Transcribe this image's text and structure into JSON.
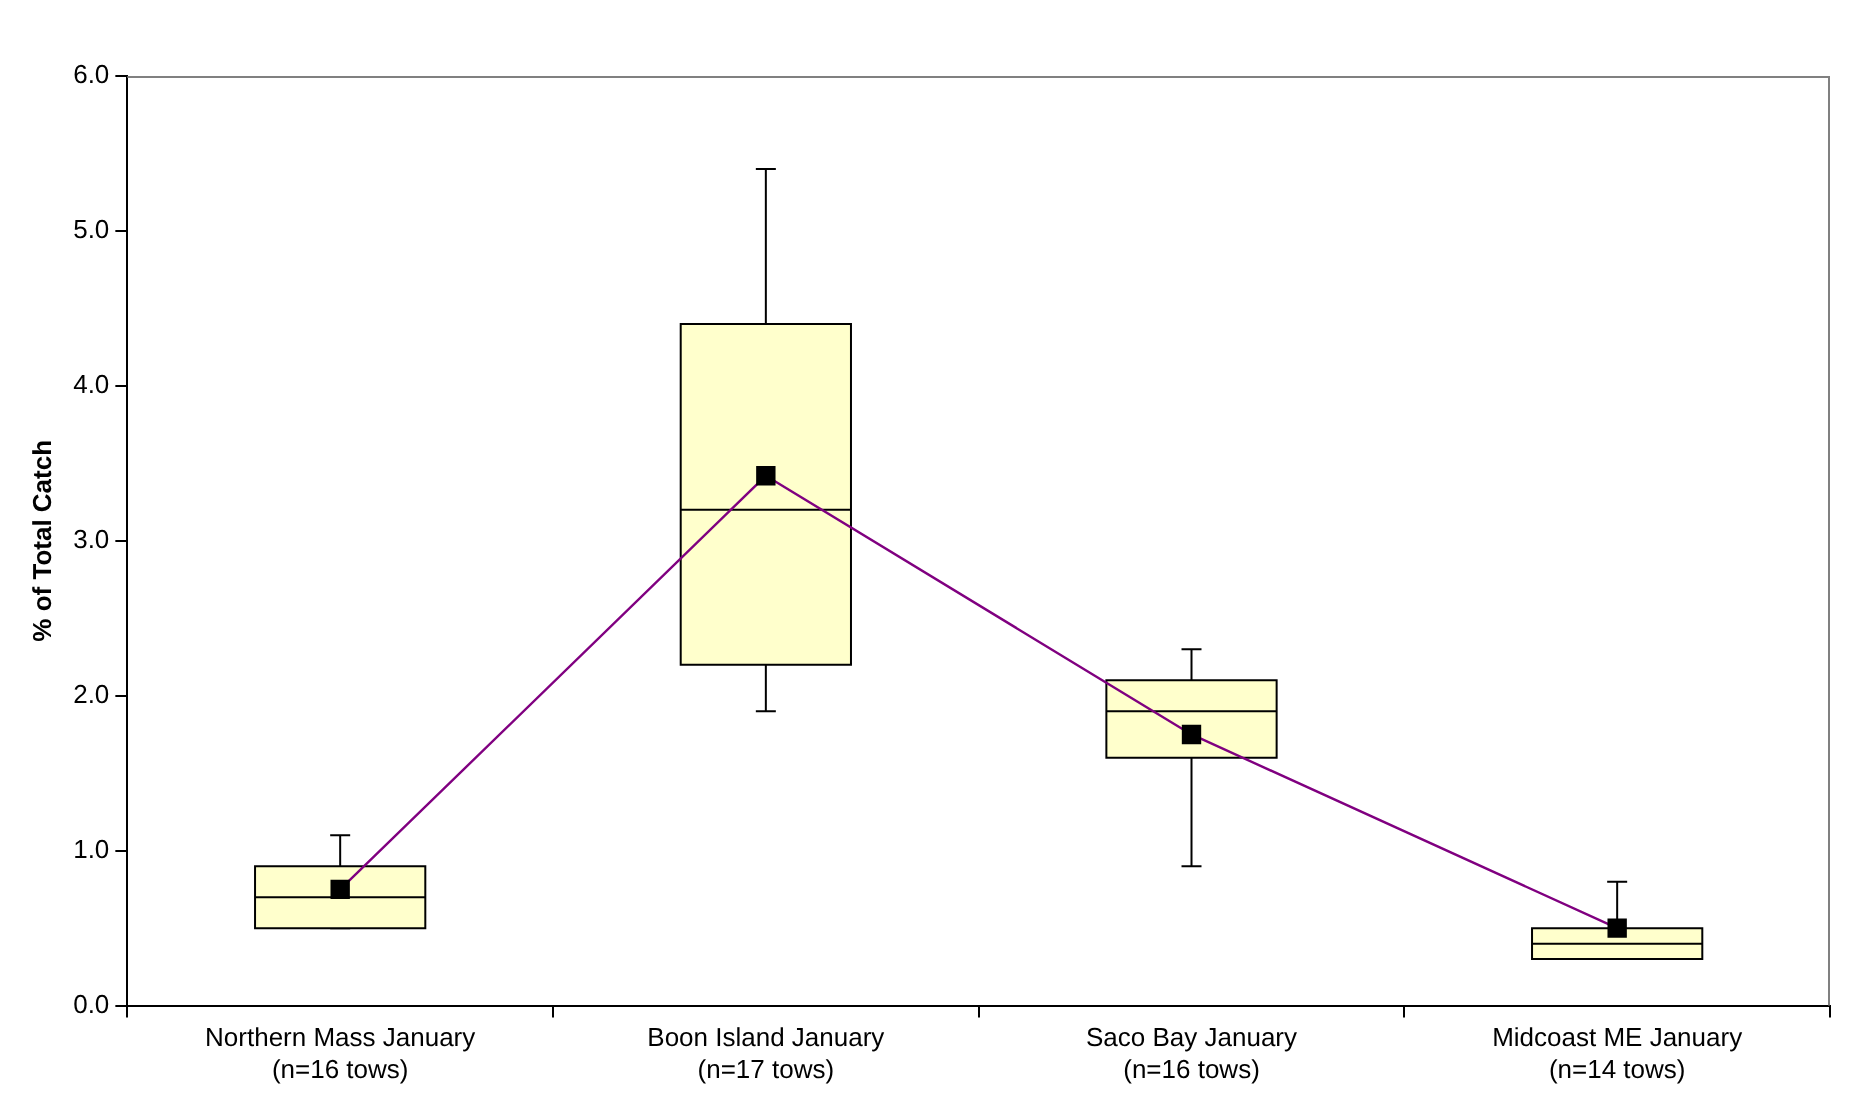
{
  "chart_data": {
    "type": "box",
    "categories": [
      "Northern Mass January\n(n=16 tows)",
      "Boon Island January\n(n=17 tows)",
      "Saco Bay January\n(n=16 tows)",
      "Midcoast ME January\n(n=14 tows)"
    ],
    "ylabel": "% of Total Catch",
    "ylim": [
      0,
      6
    ],
    "yticks": [
      {
        "value": 0,
        "label": "0.0"
      },
      {
        "value": 1,
        "label": "1.0"
      },
      {
        "value": 2,
        "label": "2.0"
      },
      {
        "value": 3,
        "label": "3.0"
      },
      {
        "value": 4,
        "label": "4.0"
      },
      {
        "value": 5,
        "label": "5.0"
      },
      {
        "value": 6,
        "label": "6.0"
      }
    ],
    "grid": false,
    "legend": false,
    "series": [
      {
        "type": "box",
        "color": "#ffffcc",
        "boxes": [
          {
            "low": 0.5,
            "q1": 0.5,
            "median": 0.7,
            "q3": 0.9,
            "high": 1.1
          },
          {
            "low": 1.9,
            "q1": 2.2,
            "median": 3.2,
            "q3": 4.4,
            "high": 5.4
          },
          {
            "low": 0.9,
            "q1": 1.6,
            "median": 1.9,
            "q3": 2.1,
            "high": 2.3
          },
          {
            "low": 0.3,
            "q1": 0.3,
            "median": 0.4,
            "q3": 0.5,
            "high": 0.8
          }
        ]
      },
      {
        "type": "line",
        "color": "#800080",
        "marker": "square",
        "values": [
          0.75,
          3.42,
          1.75,
          0.5
        ]
      }
    ]
  }
}
